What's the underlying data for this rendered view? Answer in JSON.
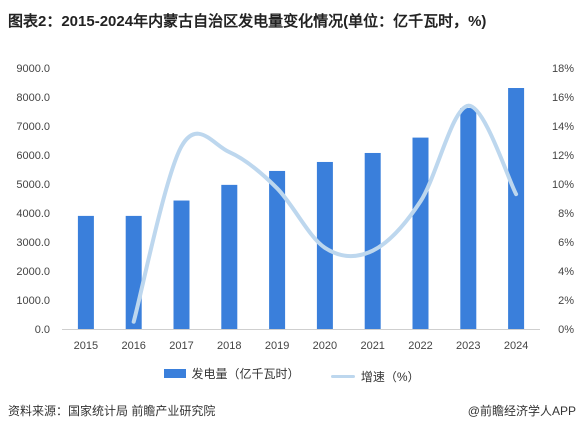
{
  "title": "图表2：2015-2024年内蒙古自治区发电量变化情况(单位：亿千瓦时，%)",
  "source": "资料来源：国家统计局 前瞻产业研究院",
  "credit": "@前瞻经济学人APP",
  "colors": {
    "bar": "#3a7fdb",
    "line": "#bdd7ee"
  },
  "chart_data": {
    "type": "bar",
    "categories": [
      "2015",
      "2016",
      "2017",
      "2018",
      "2019",
      "2020",
      "2021",
      "2022",
      "2023",
      "2024"
    ],
    "series": [
      {
        "name": "发电量（亿千瓦时）",
        "type": "bar",
        "axis": "left",
        "values": [
          3900,
          3900,
          4430,
          4970,
          5450,
          5760,
          6070,
          6600,
          7620,
          8310
        ]
      },
      {
        "name": "增速（%）",
        "type": "line",
        "axis": "right",
        "values": [
          null,
          0.5,
          12.6,
          12.2,
          9.7,
          5.6,
          5.4,
          8.8,
          15.4,
          9.3
        ]
      }
    ],
    "y_left": {
      "range": [
        0,
        9000
      ],
      "ticks": [
        "0.0",
        "1000.0",
        "2000.0",
        "3000.0",
        "4000.0",
        "5000.0",
        "6000.0",
        "7000.0",
        "8000.0",
        "9000.0"
      ]
    },
    "y_right": {
      "range": [
        0,
        18
      ],
      "ticks": [
        "0%",
        "2%",
        "4%",
        "6%",
        "8%",
        "10%",
        "12%",
        "14%",
        "16%",
        "18%"
      ]
    },
    "grid": false,
    "legend_position": "bottom"
  }
}
